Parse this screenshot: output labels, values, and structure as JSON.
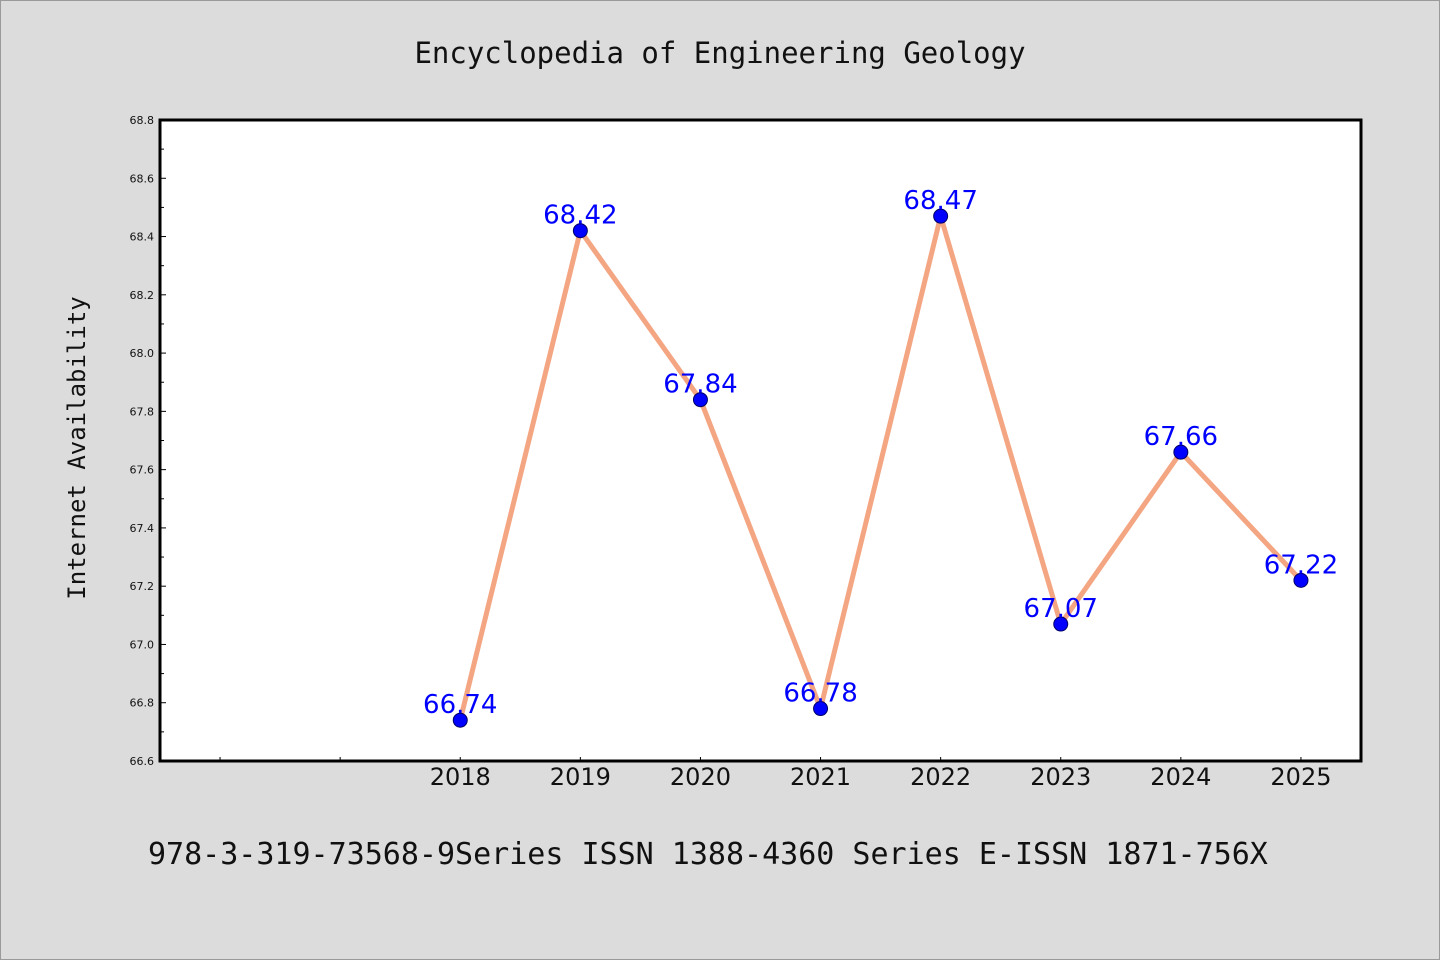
{
  "colors": {
    "background": "#dcdcdc",
    "plot_background": "#ffffff",
    "line": "#f4a582",
    "marker": "#0000ff",
    "data_label": "#0000ff",
    "axis": "#000000"
  },
  "footer": "978-3-319-73568-9Series ISSN 1388-4360 Series E-ISSN 1871-756X",
  "chart_data": {
    "type": "line",
    "title": "Encyclopedia of Engineering Geology",
    "xlabel": "",
    "ylabel": "Internet Availability",
    "categories": [
      "2018",
      "2019",
      "2020",
      "2021",
      "2022",
      "2023",
      "2024",
      "2025"
    ],
    "series": [
      {
        "values": [
          66.74,
          68.42,
          67.84,
          66.78,
          68.47,
          67.07,
          67.66,
          67.22
        ],
        "labels": [
          "66.74",
          "68.42",
          "67.84",
          "66.78",
          "68.47",
          "67.07",
          "67.66",
          "67.22"
        ]
      }
    ],
    "ylim": [
      66.6,
      68.8
    ],
    "yticks": [
      "66.6",
      "66.8",
      "67.0",
      "67.2",
      "67.4",
      "67.6",
      "67.8",
      "68.0",
      "68.2",
      "68.4",
      "68.6",
      "68.8"
    ],
    "x_slots": 10,
    "first_category_slot": 2,
    "grid": false,
    "legend": "none",
    "marker": "circle"
  }
}
